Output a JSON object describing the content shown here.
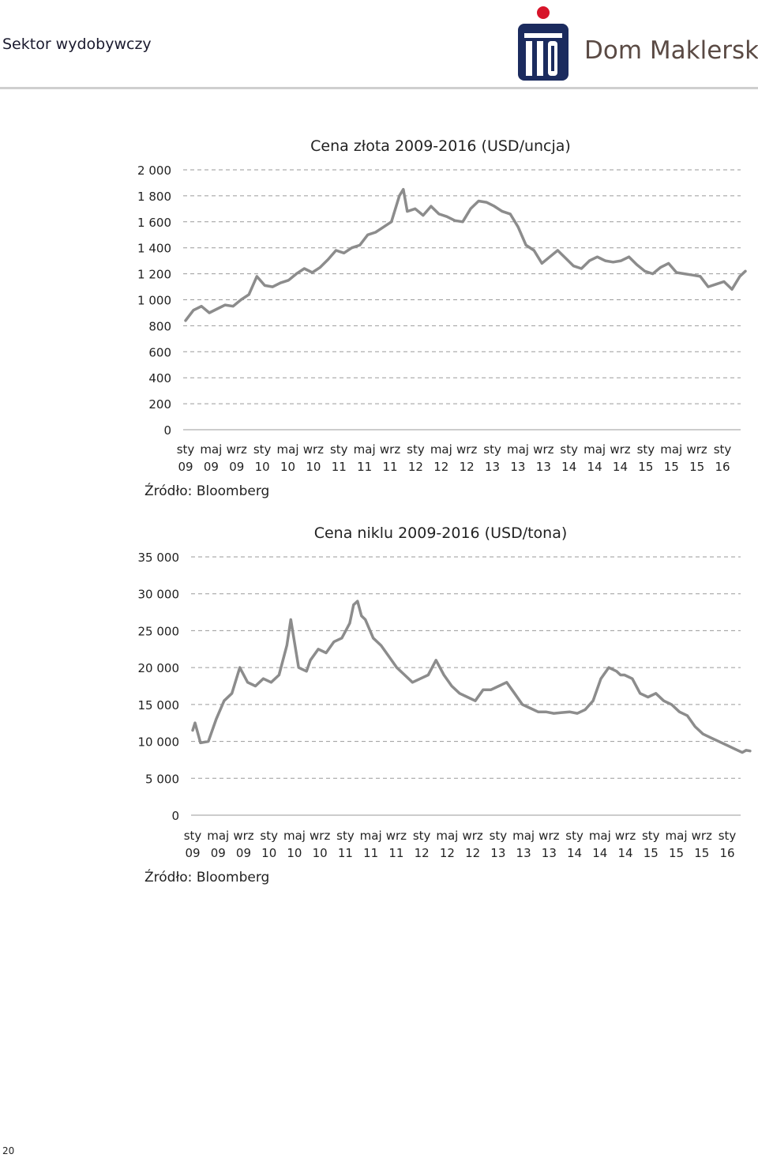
{
  "header": {
    "section_title": "Sektor wydobywczy"
  },
  "logo": {
    "brand_mark": "PKO",
    "brand_text": "Dom Maklerski",
    "colors": {
      "navy": "#1b2b5e",
      "red": "#d7142a",
      "text": "#5a4a44"
    }
  },
  "page_number": "20",
  "chart_data": [
    {
      "type": "line",
      "title": "Cena złota 2009-2016 (USD/uncja)",
      "source": "Źródło: Bloomberg",
      "ylim": [
        0,
        2000
      ],
      "y_ticks": [
        "0",
        "200",
        "400",
        "600",
        "800",
        "1 000",
        "1 200",
        "1 400",
        "1 600",
        "1 800",
        "2 000"
      ],
      "x_ticks": [
        [
          "sty",
          "09"
        ],
        [
          "maj",
          "09"
        ],
        [
          "wrz",
          "09"
        ],
        [
          "sty",
          "10"
        ],
        [
          "maj",
          "10"
        ],
        [
          "wrz",
          "10"
        ],
        [
          "sty",
          "11"
        ],
        [
          "maj",
          "11"
        ],
        [
          "wrz",
          "11"
        ],
        [
          "sty",
          "12"
        ],
        [
          "maj",
          "12"
        ],
        [
          "wrz",
          "12"
        ],
        [
          "sty",
          "13"
        ],
        [
          "maj",
          "13"
        ],
        [
          "wrz",
          "13"
        ],
        [
          "sty",
          "14"
        ],
        [
          "maj",
          "14"
        ],
        [
          "wrz",
          "14"
        ],
        [
          "sty",
          "15"
        ],
        [
          "maj",
          "15"
        ],
        [
          "wrz",
          "15"
        ],
        [
          "sty",
          "16"
        ]
      ],
      "grid": "dashed-horizontal",
      "line_color": "#8c8c8c",
      "x": [
        2009.0,
        2009.1,
        2009.2,
        2009.3,
        2009.4,
        2009.5,
        2009.6,
        2009.7,
        2009.8,
        2009.9,
        2010.0,
        2010.1,
        2010.2,
        2010.3,
        2010.4,
        2010.5,
        2010.6,
        2010.7,
        2010.8,
        2010.9,
        2011.0,
        2011.1,
        2011.2,
        2011.3,
        2011.4,
        2011.5,
        2011.6,
        2011.7,
        2011.75,
        2011.8,
        2011.9,
        2012.0,
        2012.1,
        2012.2,
        2012.3,
        2012.4,
        2012.5,
        2012.6,
        2012.7,
        2012.8,
        2012.9,
        2013.0,
        2013.1,
        2013.2,
        2013.3,
        2013.4,
        2013.5,
        2013.6,
        2013.7,
        2013.8,
        2013.9,
        2014.0,
        2014.1,
        2014.2,
        2014.3,
        2014.4,
        2014.5,
        2014.6,
        2014.7,
        2014.8,
        2014.9,
        2015.0,
        2015.1,
        2015.2,
        2015.3,
        2015.4,
        2015.5,
        2015.6,
        2015.7,
        2015.8,
        2015.9,
        2016.0,
        2016.07
      ],
      "values": [
        840,
        920,
        950,
        900,
        930,
        960,
        950,
        1000,
        1040,
        1180,
        1110,
        1100,
        1130,
        1150,
        1200,
        1240,
        1210,
        1250,
        1310,
        1380,
        1360,
        1400,
        1420,
        1500,
        1520,
        1560,
        1600,
        1800,
        1850,
        1680,
        1700,
        1650,
        1720,
        1660,
        1640,
        1610,
        1600,
        1700,
        1760,
        1750,
        1720,
        1680,
        1660,
        1560,
        1420,
        1380,
        1280,
        1330,
        1380,
        1320,
        1260,
        1240,
        1300,
        1330,
        1300,
        1290,
        1300,
        1330,
        1270,
        1220,
        1200,
        1250,
        1280,
        1210,
        1200,
        1190,
        1180,
        1100,
        1120,
        1140,
        1080,
        1180,
        1220
      ]
    },
    {
      "type": "line",
      "title": "Cena niklu 2009-2016 (USD/tona)",
      "source": "Źródło: Bloomberg",
      "ylim": [
        0,
        35000
      ],
      "y_ticks": [
        "0",
        "5 000",
        "10 000",
        "15 000",
        "20 000",
        "25 000",
        "30 000",
        "35 000"
      ],
      "x_ticks": [
        [
          "sty",
          "09"
        ],
        [
          "maj",
          "09"
        ],
        [
          "wrz",
          "09"
        ],
        [
          "sty",
          "10"
        ],
        [
          "maj",
          "10"
        ],
        [
          "wrz",
          "10"
        ],
        [
          "sty",
          "11"
        ],
        [
          "maj",
          "11"
        ],
        [
          "wrz",
          "11"
        ],
        [
          "sty",
          "12"
        ],
        [
          "maj",
          "12"
        ],
        [
          "wrz",
          "12"
        ],
        [
          "sty",
          "13"
        ],
        [
          "maj",
          "13"
        ],
        [
          "wrz",
          "13"
        ],
        [
          "sty",
          "14"
        ],
        [
          "maj",
          "14"
        ],
        [
          "wrz",
          "14"
        ],
        [
          "sty",
          "15"
        ],
        [
          "maj",
          "15"
        ],
        [
          "wrz",
          "15"
        ],
        [
          "sty",
          "16"
        ]
      ],
      "grid": "dashed-horizontal",
      "line_color": "#8c8c8c",
      "x": [
        2009.0,
        2009.03,
        2009.1,
        2009.2,
        2009.3,
        2009.4,
        2009.5,
        2009.6,
        2009.7,
        2009.8,
        2009.9,
        2010.0,
        2010.1,
        2010.2,
        2010.25,
        2010.35,
        2010.45,
        2010.5,
        2010.6,
        2010.7,
        2010.8,
        2010.9,
        2011.0,
        2011.05,
        2011.1,
        2011.15,
        2011.2,
        2011.3,
        2011.4,
        2011.5,
        2011.6,
        2011.7,
        2011.8,
        2011.9,
        2012.0,
        2012.1,
        2012.2,
        2012.3,
        2012.4,
        2012.5,
        2012.6,
        2012.7,
        2012.8,
        2012.9,
        2013.0,
        2013.1,
        2013.2,
        2013.3,
        2013.4,
        2013.5,
        2013.6,
        2013.7,
        2013.8,
        2013.9,
        2014.0,
        2014.1,
        2014.2,
        2014.3,
        2014.4,
        2014.45,
        2014.5,
        2014.6,
        2014.7,
        2014.8,
        2014.9,
        2015.0,
        2015.1,
        2015.2,
        2015.3,
        2015.4,
        2015.5,
        2015.6,
        2015.7,
        2015.8,
        2015.9,
        2016.0,
        2016.05,
        2016.1
      ],
      "values": [
        11500,
        12500,
        9800,
        10000,
        13000,
        15500,
        16500,
        20000,
        18000,
        17500,
        18500,
        18000,
        19000,
        23000,
        26500,
        20000,
        19500,
        21000,
        22500,
        22000,
        23500,
        24000,
        26000,
        28500,
        29000,
        27000,
        26500,
        24000,
        23000,
        21500,
        20000,
        19000,
        18000,
        18500,
        19000,
        21000,
        19000,
        17500,
        16500,
        16000,
        15500,
        17000,
        17000,
        17500,
        18000,
        16500,
        15000,
        14500,
        14000,
        14000,
        13800,
        13900,
        14000,
        13800,
        14300,
        15500,
        18500,
        20000,
        19500,
        19000,
        19000,
        18500,
        16500,
        16000,
        16500,
        15500,
        15000,
        14000,
        13500,
        12000,
        11000,
        10500,
        10000,
        9500,
        9000,
        8500,
        8800,
        8700
      ]
    }
  ]
}
